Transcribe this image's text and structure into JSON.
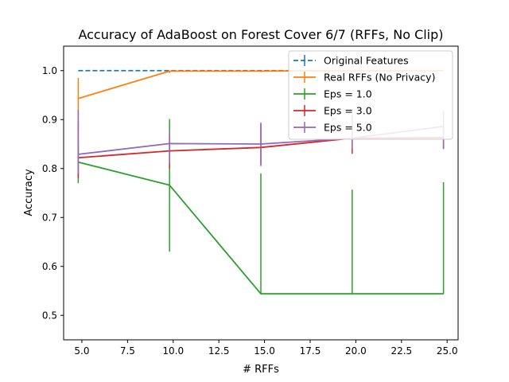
{
  "chart_data": {
    "type": "line",
    "title": "Accuracy of AdaBoost on Forest Cover 6/7 (RFFs, No Clip)",
    "xlabel": "# RFFs",
    "ylabel": "Accuracy",
    "xlim": [
      4.0,
      25.6
    ],
    "ylim": [
      0.45,
      1.05
    ],
    "xticks": [
      5.0,
      7.5,
      10.0,
      12.5,
      15.0,
      17.5,
      20.0,
      22.5,
      25.0
    ],
    "xtick_labels": [
      "5.0",
      "7.5",
      "10.0",
      "12.5",
      "15.0",
      "17.5",
      "20.0",
      "22.5",
      "25.0"
    ],
    "yticks": [
      0.5,
      0.6,
      0.7,
      0.8,
      0.9,
      1.0
    ],
    "ytick_labels": [
      "0.5",
      "0.6",
      "0.7",
      "0.8",
      "0.9",
      "1.0"
    ],
    "grid": false,
    "legend_position": "top-right",
    "series": [
      {
        "name": "Original Features",
        "color": "#1f77b4",
        "dashed": true,
        "x": [
          4.8,
          9.8,
          14.8,
          19.8,
          24.8
        ],
        "y": [
          1.0,
          1.0,
          1.0,
          1.0,
          1.0
        ],
        "err_low": [
          1.0,
          1.0,
          1.0,
          1.0,
          1.0
        ],
        "err_high": [
          1.0,
          1.0,
          1.0,
          1.0,
          1.0
        ]
      },
      {
        "name": "Real RFFs (No Privacy)",
        "color": "#ff7f0e",
        "dashed": false,
        "x": [
          4.8,
          9.8,
          14.8,
          19.8,
          24.8
        ],
        "y": [
          0.943,
          0.999,
          0.999,
          1.0,
          1.0
        ],
        "err_low": [
          0.88,
          0.995,
          0.997,
          0.999,
          0.999
        ],
        "err_high": [
          0.985,
          1.0,
          1.0,
          1.0,
          1.0
        ]
      },
      {
        "name": "Eps = 1.0",
        "color": "#2ca02c",
        "dashed": false,
        "x": [
          4.8,
          9.8,
          14.8,
          19.8,
          24.8
        ],
        "y": [
          0.813,
          0.766,
          0.544,
          0.544,
          0.544
        ],
        "err_low": [
          0.77,
          0.63,
          0.544,
          0.544,
          0.544
        ],
        "err_high": [
          0.855,
          0.901,
          0.79,
          0.757,
          0.772
        ]
      },
      {
        "name": "Eps = 3.0",
        "color": "#d62728",
        "dashed": false,
        "x": [
          4.8,
          9.8,
          14.8,
          19.8,
          24.8
        ],
        "y": [
          0.822,
          0.836,
          0.843,
          0.862,
          0.863
        ],
        "err_low": [
          0.78,
          0.8,
          0.808,
          0.83,
          0.84
        ],
        "err_high": [
          0.895,
          0.875,
          0.89,
          0.895,
          0.885
        ]
      },
      {
        "name": "Eps = 5.0",
        "color": "#9467bd",
        "dashed": false,
        "x": [
          4.8,
          9.8,
          14.8,
          19.8,
          24.8
        ],
        "y": [
          0.829,
          0.851,
          0.85,
          0.862,
          0.886
        ],
        "err_low": [
          0.79,
          0.81,
          0.805,
          0.84,
          0.84
        ],
        "err_high": [
          0.92,
          0.878,
          0.894,
          0.91,
          0.918
        ]
      }
    ]
  }
}
